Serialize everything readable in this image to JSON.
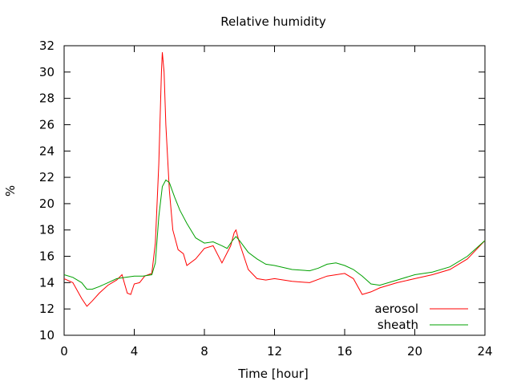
{
  "chart_data": {
    "type": "line",
    "title": "Relative humidity",
    "xlabel": "Time [hour]",
    "ylabel": "%",
    "xlim": [
      0,
      24
    ],
    "ylim": [
      10,
      32
    ],
    "xticks": [
      0,
      4,
      8,
      12,
      16,
      20,
      24
    ],
    "yticks": [
      10,
      12,
      14,
      16,
      18,
      20,
      22,
      24,
      26,
      28,
      30,
      32
    ],
    "grid": false,
    "legend_position": "bottom-right",
    "series": [
      {
        "name": "aerosol",
        "color": "#ff0000",
        "x": [
          0,
          0.5,
          1.0,
          1.3,
          1.6,
          2.0,
          2.5,
          3.0,
          3.3,
          3.6,
          3.8,
          4.0,
          4.3,
          4.6,
          4.8,
          5.0,
          5.2,
          5.4,
          5.55,
          5.6,
          5.7,
          5.8,
          6.0,
          6.2,
          6.5,
          6.8,
          7.0,
          7.5,
          8.0,
          8.5,
          9.0,
          9.5,
          9.7,
          9.8,
          10.0,
          10.5,
          11.0,
          11.5,
          12.0,
          13.0,
          14.0,
          15.0,
          16.0,
          16.5,
          17.0,
          17.5,
          18.0,
          18.5,
          19.0,
          20.0,
          21.0,
          22.0,
          23.0,
          23.5,
          24.0
        ],
        "y": [
          14.3,
          14.0,
          12.8,
          12.2,
          12.6,
          13.2,
          13.8,
          14.2,
          14.6,
          13.2,
          13.1,
          13.9,
          14.0,
          14.5,
          14.6,
          14.7,
          17.0,
          23.0,
          30.0,
          31.5,
          30.0,
          26.0,
          21.0,
          18.0,
          16.5,
          16.2,
          15.3,
          15.8,
          16.6,
          16.8,
          15.5,
          16.8,
          17.8,
          18.0,
          17.0,
          15.0,
          14.3,
          14.2,
          14.3,
          14.1,
          14.0,
          14.5,
          14.7,
          14.3,
          13.1,
          13.3,
          13.6,
          13.8,
          14.0,
          14.3,
          14.6,
          15.0,
          15.8,
          16.5,
          17.2
        ]
      },
      {
        "name": "sheath",
        "color": "#00a000",
        "x": [
          0,
          0.5,
          1.0,
          1.3,
          1.6,
          2.0,
          2.5,
          3.0,
          3.5,
          4.0,
          4.5,
          5.0,
          5.2,
          5.4,
          5.6,
          5.8,
          6.0,
          6.3,
          6.6,
          7.0,
          7.5,
          8.0,
          8.5,
          9.0,
          9.3,
          9.6,
          9.8,
          10.0,
          10.5,
          11.0,
          11.5,
          12.0,
          13.0,
          14.0,
          14.5,
          15.0,
          15.5,
          16.0,
          16.5,
          17.0,
          17.5,
          18.0,
          19.0,
          20.0,
          21.0,
          22.0,
          23.0,
          24.0
        ],
        "y": [
          14.6,
          14.4,
          14.0,
          13.5,
          13.5,
          13.7,
          14.0,
          14.3,
          14.4,
          14.5,
          14.5,
          14.6,
          15.5,
          19.0,
          21.3,
          21.8,
          21.6,
          20.5,
          19.5,
          18.5,
          17.4,
          17.0,
          17.1,
          16.8,
          16.6,
          17.2,
          17.5,
          17.2,
          16.3,
          15.8,
          15.4,
          15.3,
          15.0,
          14.9,
          15.1,
          15.4,
          15.5,
          15.3,
          15.0,
          14.5,
          13.9,
          13.8,
          14.2,
          14.6,
          14.8,
          15.2,
          16.0,
          17.2
        ]
      }
    ]
  }
}
